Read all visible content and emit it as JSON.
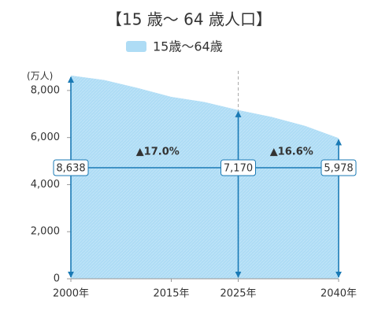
{
  "chart_data": {
    "type": "area",
    "title": "【15 歳～ 64 歳人口】",
    "y_unit": "(万人)",
    "x": [
      2000,
      2005,
      2010,
      2015,
      2020,
      2025,
      2030,
      2035,
      2040
    ],
    "series": [
      {
        "name": "15歳～64歳",
        "color": "#aedcf5",
        "values": [
          8638,
          8442,
          8103,
          7728,
          7509,
          7170,
          6875,
          6494,
          5978
        ],
        "value_labels": [
          "8,638",
          null,
          null,
          null,
          null,
          "7,170",
          null,
          null,
          "5,978"
        ]
      }
    ],
    "xlim": [
      2000,
      2040
    ],
    "xticks": [
      {
        "value": 2000,
        "label": "2000年"
      },
      {
        "value": 2015,
        "label": "2015年"
      },
      {
        "value": 2025,
        "label": "2025年"
      },
      {
        "value": 2040,
        "label": "2040年"
      }
    ],
    "ylim": [
      0,
      9000
    ],
    "yticks": [
      0,
      {
        "value": 2000,
        "label": "2,000"
      },
      {
        "value": 4000,
        "label": "4,000"
      },
      {
        "value": 6000,
        "label": "6,000"
      },
      {
        "value": 8000,
        "label": "8,000"
      }
    ],
    "annotations": [
      {
        "from": 2000,
        "to": 2025,
        "text": "▲17.0%"
      },
      {
        "from": 2025,
        "to": 2040,
        "text": "▲16.6%"
      }
    ],
    "arrow_color": "#1a7ab5"
  }
}
